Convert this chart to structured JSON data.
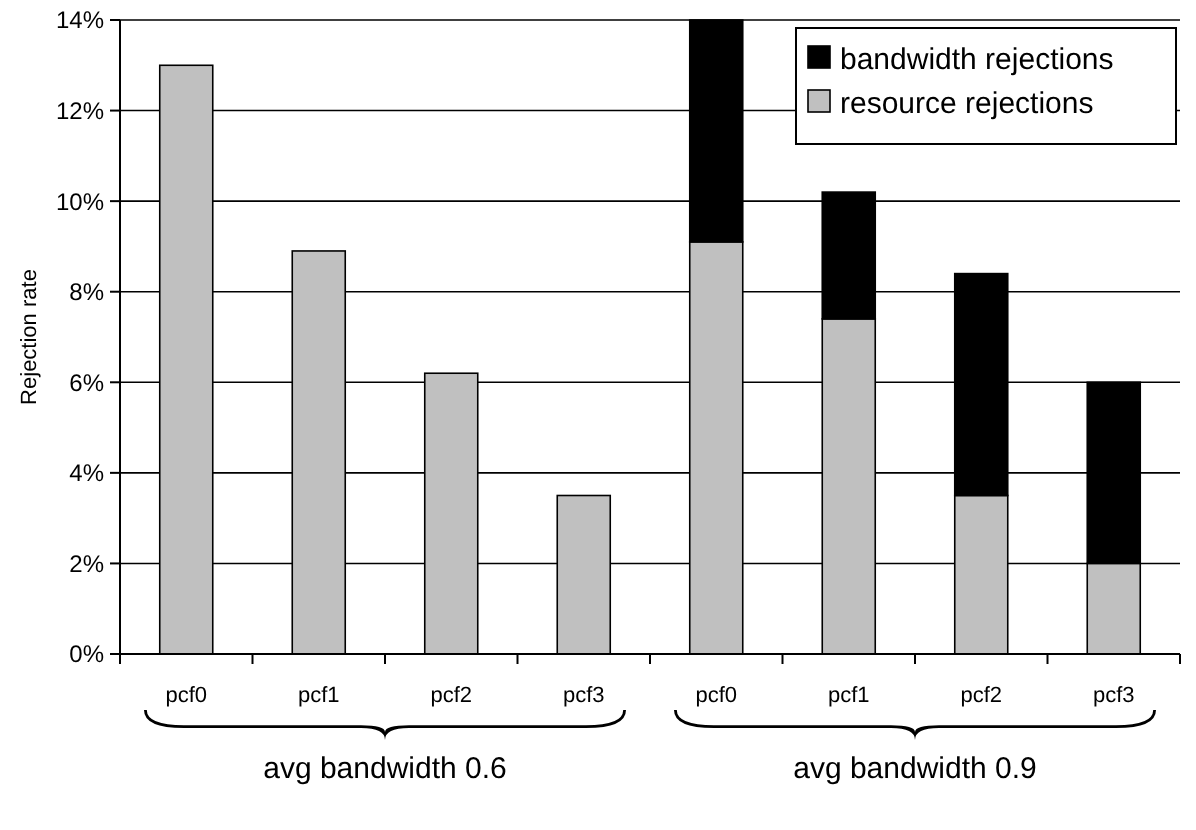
{
  "chart_data": {
    "type": "bar",
    "stacked": true,
    "ylabel": "Rejection rate",
    "categories": [
      "pcf0",
      "pcf1",
      "pcf2",
      "pcf3",
      "pcf0",
      "pcf1",
      "pcf2",
      "pcf3"
    ],
    "series": [
      {
        "name": "resource rejections",
        "color": "#c0c0c0",
        "values": [
          13.0,
          8.9,
          6.2,
          3.5,
          9.1,
          7.4,
          3.5,
          2.0
        ]
      },
      {
        "name": "bandwidth rejections",
        "color": "#000000",
        "values": [
          0,
          0,
          0,
          0,
          4.9,
          2.8,
          4.9,
          4.0
        ]
      }
    ],
    "ylim": [
      0,
      14
    ],
    "yticks": [
      {
        "value": 0,
        "label": "0%"
      },
      {
        "value": 2,
        "label": "2%"
      },
      {
        "value": 4,
        "label": "4%"
      },
      {
        "value": 6,
        "label": "6%"
      },
      {
        "value": 8,
        "label": "8%"
      },
      {
        "value": 10,
        "label": "10%"
      },
      {
        "value": 12,
        "label": "12%"
      },
      {
        "value": 14,
        "label": "14%"
      }
    ],
    "grid": "y",
    "legend": "top right",
    "annotations": [
      "avg bandwidth 0.6",
      "avg bandwidth 0.9"
    ]
  }
}
